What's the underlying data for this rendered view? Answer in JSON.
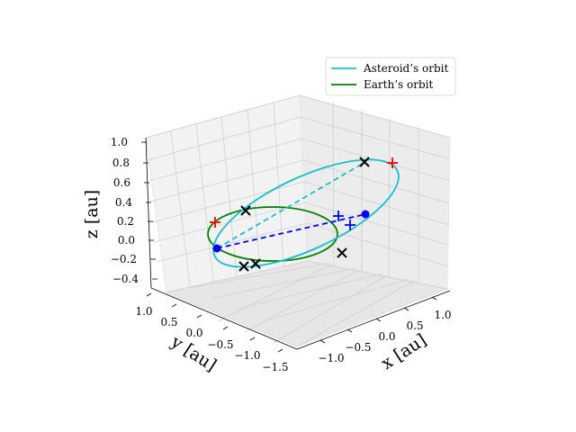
{
  "chart_data": {
    "type": "line",
    "projection": "3d",
    "grid": true,
    "legend_position": "top-right",
    "xlabel": "x [au]",
    "ylabel": "y [au]",
    "zlabel": "z [au]",
    "xlim": [
      -1.5,
      1.5
    ],
    "ylim": [
      -1.5,
      1.0
    ],
    "zlim": [
      -0.4,
      1.0
    ],
    "xticks": [
      "−1.0",
      "−0.5",
      "0.0",
      "0.5",
      "1.0"
    ],
    "yticks": [
      "1.0",
      "0.5",
      "0.0",
      "−0.5",
      "−1.0",
      "−1.5"
    ],
    "zticks": [
      "1.0",
      "0.8",
      "0.6",
      "0.4",
      "0.2",
      "0.0",
      "−0.2",
      "−0.4"
    ],
    "series": [
      {
        "name": "Asteroid’s orbit",
        "color": "#17becf",
        "style": "solid"
      },
      {
        "name": "Earth’s orbit",
        "color": "#008000",
        "style": "solid"
      }
    ],
    "colors": {
      "asteroid": "#17becf",
      "earth": "#008000",
      "markers_black": "#000000",
      "markers_red": "#ff0000",
      "markers_blue": "#0000ff"
    }
  }
}
